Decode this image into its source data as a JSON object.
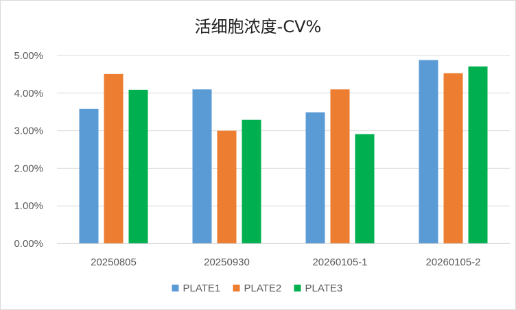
{
  "chart_data": {
    "type": "bar",
    "title": "活细胞浓度-CV%",
    "xlabel": "",
    "ylabel": "",
    "categories": [
      "20250805",
      "20250930",
      "20260105-1",
      "20260105-2"
    ],
    "series": [
      {
        "name": "PLATE1",
        "color": "#5b9bd5",
        "values": [
          3.58,
          4.1,
          3.49,
          4.88
        ]
      },
      {
        "name": "PLATE2",
        "color": "#ed7d31",
        "values": [
          4.51,
          3.0,
          4.1,
          4.53
        ]
      },
      {
        "name": "PLATE3",
        "color": "#00b050",
        "values": [
          4.09,
          3.29,
          2.91,
          4.71
        ]
      }
    ],
    "ylim": [
      0,
      5
    ],
    "yticks": [
      0,
      1,
      2,
      3,
      4,
      5
    ],
    "ytick_labels": [
      "0.00%",
      "1.00%",
      "2.00%",
      "3.00%",
      "4.00%",
      "5.00%"
    ],
    "grid": true,
    "legend": "bottom-center",
    "gridline_color": "#d9d9d9",
    "axis_color": "#bfbfbf"
  }
}
